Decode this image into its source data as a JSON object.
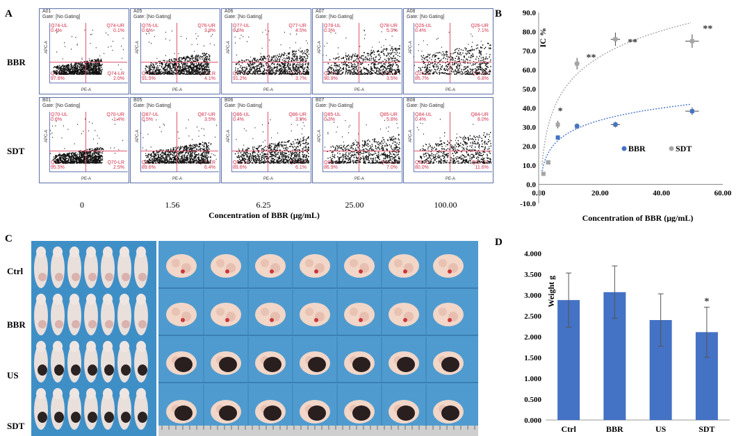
{
  "panels": {
    "a": "A",
    "b": "B",
    "c": "C",
    "d": "D"
  },
  "panel_a": {
    "row_labels": [
      "BBR",
      "SDT"
    ],
    "concentrations": [
      "0",
      "1.56",
      "6.25",
      "25.00",
      "100.00"
    ],
    "xlabel": "Concentration of BBR (μg/mL)",
    "axis_y": "APC-A",
    "axis_x": "PE-A",
    "cells": [
      {
        "id": "A01",
        "gate": "Gate: [No Gating]",
        "ul": "Q74-UL",
        "ul_pct": "0.4%",
        "ur": "Q74-UR",
        "ur_pct": "0.1%",
        "ll": "Q74-LL",
        "ll_pct": "97.6%",
        "lr": "Q74-LR",
        "lr_pct": "2.0%"
      },
      {
        "id": "A05",
        "gate": "Gate: [No Gating]",
        "ul": "Q76-UL",
        "ul_pct": "0.6%",
        "ur": "Q76-UR",
        "ur_pct": "3.8%",
        "ll": "Q76-LL",
        "ll_pct": "91.5%",
        "lr": "Q76-LR",
        "lr_pct": "4.1%"
      },
      {
        "id": "A06",
        "gate": "Gate: [No Gating]",
        "ul": "Q77-UL",
        "ul_pct": "0.6%",
        "ur": "Q77-UR",
        "ur_pct": "4.5%",
        "ll": "Q77-LL",
        "ll_pct": "91.2%",
        "lr": "Q77-LR",
        "lr_pct": "3.7%"
      },
      {
        "id": "A07",
        "gate": "Gate: [No Gating]",
        "ul": "Q78-UL",
        "ul_pct": "0.3%",
        "ur": "Q78-UR",
        "ur_pct": "5.3%",
        "ll": "Q78-LL",
        "ll_pct": "90.9%",
        "lr": "Q78-LR",
        "lr_pct": "3.5%"
      },
      {
        "id": "A08",
        "gate": "Gate: [No Gating]",
        "ul": "Q26-UL",
        "ul_pct": "0.4%",
        "ur": "Q26-UR",
        "ur_pct": "7.1%",
        "ll": "Q26-LL",
        "ll_pct": "85.7%",
        "lr": "Q26-LR",
        "lr_pct": "6.8%"
      },
      {
        "id": "B01",
        "gate": "Gate: [No Gating]",
        "ul": "Q70-UL",
        "ul_pct": "0.6%",
        "ur": "Q70-UR",
        "ur_pct": "1.4%",
        "ll": "Q70-LL",
        "ll_pct": "95.5%",
        "lr": "Q70-LR",
        "lr_pct": "2.5%"
      },
      {
        "id": "B05",
        "gate": "Gate: [No Gating]",
        "ul": "Q87-UL",
        "ul_pct": "0.5%",
        "ur": "Q87-UR",
        "ur_pct": "3.5%",
        "ll": "Q87-LL",
        "ll_pct": "89.6%",
        "lr": "Q87-LR",
        "lr_pct": "6.4%"
      },
      {
        "id": "B06",
        "gate": "Gate: [No Gating]",
        "ul": "Q86-UL",
        "ul_pct": "0.4%",
        "ur": "Q86-UR",
        "ur_pct": "3.9%",
        "ll": "Q86-LL",
        "ll_pct": "89.6%",
        "lr": "Q86-LR",
        "lr_pct": "6.1%"
      },
      {
        "id": "B07",
        "gate": "Gate: [No Gating]",
        "ul": "Q85-UL",
        "ul_pct": "0.3%",
        "ur": "Q85-UR",
        "ur_pct": "5.8%",
        "ll": "Q85-LL",
        "ll_pct": "86.9%",
        "lr": "Q85-LR",
        "lr_pct": "7.0%"
      },
      {
        "id": "B08",
        "gate": "Gate: [No Gating]",
        "ul": "Q84-UL",
        "ul_pct": "0.4%",
        "ur": "Q84-UR",
        "ur_pct": "8.0%",
        "ll": "Q84-LL",
        "ll_pct": "80.0%",
        "lr": "Q84-LR",
        "lr_pct": "11.6%"
      }
    ]
  },
  "panel_c": {
    "row_labels": [
      "Ctrl",
      "BBR",
      "US",
      "SDT"
    ]
  },
  "chart_data": [
    {
      "type": "scatter",
      "ylabel": "IC %",
      "xlabel": "Concentration of BBR (μg/mL)",
      "xlim": [
        0,
        60
      ],
      "ylim": [
        -10,
        90
      ],
      "xticks": [
        "0.00",
        "20.00",
        "40.00",
        "60.00"
      ],
      "yticks": [
        "-10.0",
        "0.0",
        "10.0",
        "20.0",
        "30.0",
        "40.0",
        "50.0",
        "60.0",
        "70.0",
        "80.0",
        "90.0"
      ],
      "legend_position": "center-right",
      "series": [
        {
          "name": "BBR",
          "color": "#4472c4",
          "x": [
            0.4,
            3.1,
            6.25,
            12.5,
            25,
            50
          ],
          "y": [
            -4.5,
            11.5,
            24.5,
            30.5,
            31.3,
            38.3
          ],
          "xerr": [
            0,
            0,
            0.6,
            0.8,
            1.5,
            2.2
          ],
          "yerr": [
            0,
            0,
            1.2,
            1.5,
            1.5,
            2.0
          ]
        },
        {
          "name": "SDT",
          "color": "#a5a5a5",
          "x": [
            0.4,
            1.56,
            3.1,
            6.25,
            12.5,
            25,
            50
          ],
          "y": [
            -4.5,
            5.5,
            11.5,
            31.3,
            63.2,
            76.0,
            75.0
          ],
          "xerr": [
            0,
            0,
            0,
            0.6,
            0.8,
            1.5,
            2.2
          ],
          "yerr": [
            0,
            0,
            0,
            2.0,
            3.0,
            3.5,
            3.5
          ]
        }
      ],
      "trendlines": [
        {
          "series": "BBR",
          "style": "dotted"
        },
        {
          "series": "SDT",
          "style": "dotted"
        }
      ],
      "annotations": [
        {
          "text": "*",
          "x": 6.25,
          "y": 37
        },
        {
          "text": "**",
          "x": 15.5,
          "y": 65
        },
        {
          "text": "**",
          "x": 29,
          "y": 73
        },
        {
          "text": "**",
          "x": 53.5,
          "y": 80
        }
      ]
    },
    {
      "type": "bar",
      "ylabel": "Weight g",
      "categories": [
        "Ctrl",
        "BBR",
        "US",
        "SDT"
      ],
      "values": [
        2.88,
        3.07,
        2.4,
        2.11
      ],
      "errors": [
        0.65,
        0.63,
        0.63,
        0.6
      ],
      "ylim": [
        0,
        4
      ],
      "yticks": [
        "0.000",
        "0.500",
        "1.000",
        "1.500",
        "2.000",
        "2.500",
        "3.000",
        "3.500",
        "4.000"
      ],
      "color": "#4472c4",
      "annotations": [
        {
          "category": "SDT",
          "text": "*"
        }
      ]
    }
  ]
}
